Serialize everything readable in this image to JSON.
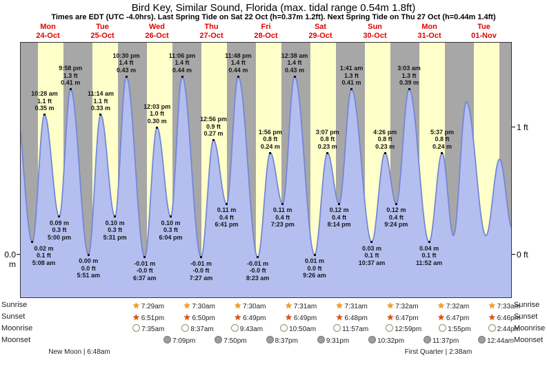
{
  "title": "Bird Key, Similar Sound, Florida (max. tidal range 0.54m 1.8ft)",
  "subtitle": "Times are EDT (UTC -4.0hrs). Last Spring Tide on Sat 22 Oct (h=0.37m 1.2ft). Next Spring Tide on Thu 27 Oct (h=0.44m 1.4ft)",
  "chart_data": {
    "type": "area",
    "title": "Bird Key, Similar Sound, Florida tide curve",
    "x_axis": {
      "days": [
        {
          "name": "Mon",
          "date": "24-Oct"
        },
        {
          "name": "Tue",
          "date": "25-Oct"
        },
        {
          "name": "Wed",
          "date": "26-Oct"
        },
        {
          "name": "Thu",
          "date": "27-Oct"
        },
        {
          "name": "Fri",
          "date": "28-Oct"
        },
        {
          "name": "Sat",
          "date": "29-Oct"
        },
        {
          "name": "Sun",
          "date": "30-Oct"
        },
        {
          "name": "Mon",
          "date": "31-Oct"
        },
        {
          "name": "Tue",
          "date": "01-Nov"
        }
      ],
      "hours_shown": 216
    },
    "y_axis": {
      "left_label": "0.0 m",
      "right_tick_labels": [
        "1 ft",
        "0 ft"
      ],
      "ft_ticks": [
        1,
        0
      ],
      "ylim_ft": [
        -0.34,
        1.66
      ]
    },
    "tide_events": [
      {
        "type": "low",
        "time": "5:08 am",
        "t": 5.13,
        "ft": 0.1,
        "ft_label": "0.1 ft",
        "m_label": "0.02 m"
      },
      {
        "type": "high",
        "time": "10:28 am",
        "t": 10.47,
        "ft": 1.1,
        "ft_label": "1.1 ft",
        "m_label": "0.35 m"
      },
      {
        "type": "low",
        "time": "5:00 pm",
        "t": 17.0,
        "ft": 0.3,
        "ft_label": "0.3 ft",
        "m_label": "0.09 m"
      },
      {
        "type": "high",
        "time": "9:58 pm",
        "t": 21.97,
        "ft": 1.3,
        "ft_label": "1.3 ft",
        "m_label": "0.41 m"
      },
      {
        "type": "low",
        "time": "5:51 am",
        "t": 29.85,
        "ft": 0.0,
        "ft_label": "0.0 ft",
        "m_label": "0.00 m"
      },
      {
        "type": "high",
        "time": "11:14 am",
        "t": 35.23,
        "ft": 1.1,
        "ft_label": "1.1 ft",
        "m_label": "0.33 m"
      },
      {
        "type": "low",
        "time": "5:31 pm",
        "t": 41.52,
        "ft": 0.3,
        "ft_label": "0.3 ft",
        "m_label": "0.10 m"
      },
      {
        "type": "high",
        "time": "10:30 pm",
        "t": 46.5,
        "ft": 1.4,
        "ft_label": "1.4 ft",
        "m_label": "0.43 m"
      },
      {
        "type": "low",
        "time": "6:37 am",
        "t": 54.62,
        "ft": -0.02,
        "ft_label": "-0.0 ft",
        "m_label": "-0.01 m"
      },
      {
        "type": "high",
        "time": "12:03 pm",
        "t": 60.05,
        "ft": 1.0,
        "ft_label": "1.0 ft",
        "m_label": "0.30 m"
      },
      {
        "type": "low",
        "time": "6:04 pm",
        "t": 66.07,
        "ft": 0.3,
        "ft_label": "0.3 ft",
        "m_label": "0.10 m"
      },
      {
        "type": "high",
        "time": "11:06 pm",
        "t": 71.1,
        "ft": 1.4,
        "ft_label": "1.4 ft",
        "m_label": "0.44 m"
      },
      {
        "type": "low",
        "time": "7:27 am",
        "t": 79.45,
        "ft": -0.02,
        "ft_label": "-0.0 ft",
        "m_label": "-0.01 m"
      },
      {
        "type": "high",
        "time": "12:56 pm",
        "t": 84.93,
        "ft": 0.9,
        "ft_label": "0.9 ft",
        "m_label": "0.27 m"
      },
      {
        "type": "low",
        "time": "6:41 pm",
        "t": 90.68,
        "ft": 0.4,
        "ft_label": "0.4 ft",
        "m_label": "0.11 m"
      },
      {
        "type": "high",
        "time": "11:48 pm",
        "t": 95.8,
        "ft": 1.4,
        "ft_label": "1.4 ft",
        "m_label": "0.44 m"
      },
      {
        "type": "low",
        "time": "8:23 am",
        "t": 104.38,
        "ft": -0.02,
        "ft_label": "-0.0 ft",
        "m_label": "-0.01 m"
      },
      {
        "type": "high",
        "time": "1:56 pm",
        "t": 109.93,
        "ft": 0.8,
        "ft_label": "0.8 ft",
        "m_label": "0.24 m"
      },
      {
        "type": "low",
        "time": "7:23 pm",
        "t": 115.38,
        "ft": 0.4,
        "ft_label": "0.4 ft",
        "m_label": "0.11 m"
      },
      {
        "type": "high",
        "time": "12:38 am",
        "t": 120.63,
        "ft": 1.4,
        "ft_label": "1.4 ft",
        "m_label": "0.43 m"
      },
      {
        "type": "low",
        "time": "9:26 am",
        "t": 129.43,
        "ft": 0.0,
        "ft_label": "0.0 ft",
        "m_label": "0.01 m"
      },
      {
        "type": "high",
        "time": "3:07 pm",
        "t": 135.12,
        "ft": 0.8,
        "ft_label": "0.8 ft",
        "m_label": "0.23 m"
      },
      {
        "type": "low",
        "time": "8:14 pm",
        "t": 140.23,
        "ft": 0.4,
        "ft_label": "0.4 ft",
        "m_label": "0.12 m"
      },
      {
        "type": "high",
        "time": "1:41 am",
        "t": 145.68,
        "ft": 1.3,
        "ft_label": "1.3 ft",
        "m_label": "0.41 m"
      },
      {
        "type": "low",
        "time": "10:37 am",
        "t": 154.62,
        "ft": 0.1,
        "ft_label": "0.1 ft",
        "m_label": "0.03 m"
      },
      {
        "type": "high",
        "time": "4:26 pm",
        "t": 160.43,
        "ft": 0.8,
        "ft_label": "0.8 ft",
        "m_label": "0.23 m"
      },
      {
        "type": "low",
        "time": "9:24 pm",
        "t": 165.4,
        "ft": 0.4,
        "ft_label": "0.4 ft",
        "m_label": "0.12 m"
      },
      {
        "type": "high",
        "time": "3:03 am",
        "t": 171.05,
        "ft": 1.3,
        "ft_label": "1.3 ft",
        "m_label": "0.39 m"
      },
      {
        "type": "low",
        "time": "11:52 am",
        "t": 179.87,
        "ft": 0.1,
        "ft_label": "0.1 ft",
        "m_label": "0.04 m"
      },
      {
        "type": "high",
        "time": "5:37 pm",
        "t": 185.62,
        "ft": 0.8,
        "ft_label": "0.8 ft",
        "m_label": "0.24 m"
      }
    ],
    "curve_padding": [
      {
        "t": -2.8,
        "ft": 1.3
      },
      {
        "t": 190.6,
        "ft": 0.15
      },
      {
        "t": 196.3,
        "ft": 1.2
      },
      {
        "t": 204.9,
        "ft": 0.15
      },
      {
        "t": 210.9,
        "ft": 0.75
      },
      {
        "t": 216.6,
        "ft": 0.2
      }
    ],
    "daylight": {
      "sunrise_frac": 0.3125,
      "sunset_frac": 0.7833
    },
    "colors": {
      "curve_fill": "#b4bff0",
      "curve_stroke": "#7487d4",
      "night_band": "#a7a7a7",
      "day_band": "#ffffca",
      "day_label": "#e10000"
    }
  },
  "almanac": {
    "rows": [
      {
        "key": "sunrise",
        "label": "Sunrise",
        "icon": "sunrise-star-icon",
        "times": [
          "7:29am",
          "7:30am",
          "7:30am",
          "7:31am",
          "7:31am",
          "7:32am",
          "7:32am",
          "7:33am"
        ]
      },
      {
        "key": "sunset",
        "label": "Sunset",
        "icon": "sunset-star-icon",
        "times": [
          "6:51pm",
          "6:50pm",
          "6:49pm",
          "6:49pm",
          "6:48pm",
          "6:47pm",
          "6:47pm",
          "6:46pm"
        ]
      },
      {
        "key": "moonrise",
        "label": "Moonrise",
        "icon": "moonrise-circle-icon",
        "times": [
          "7:35am",
          "8:37am",
          "9:43am",
          "10:50am",
          "11:57am",
          "12:59pm",
          "1:55pm",
          "2:44pm"
        ]
      },
      {
        "key": "moonset",
        "label": "Moonset",
        "icon": "moonset-circle-icon",
        "times": [
          "7:09pm",
          "7:50pm",
          "8:37pm",
          "9:31pm",
          "10:32pm",
          "11:37pm",
          "12:44am"
        ]
      }
    ],
    "phases": [
      {
        "name": "New Moon",
        "time": "6:48am",
        "label": "New Moon | 6:48am"
      },
      {
        "name": "First Quarter",
        "time": "2:38am",
        "label": "First Quarter | 2:38am"
      }
    ]
  }
}
